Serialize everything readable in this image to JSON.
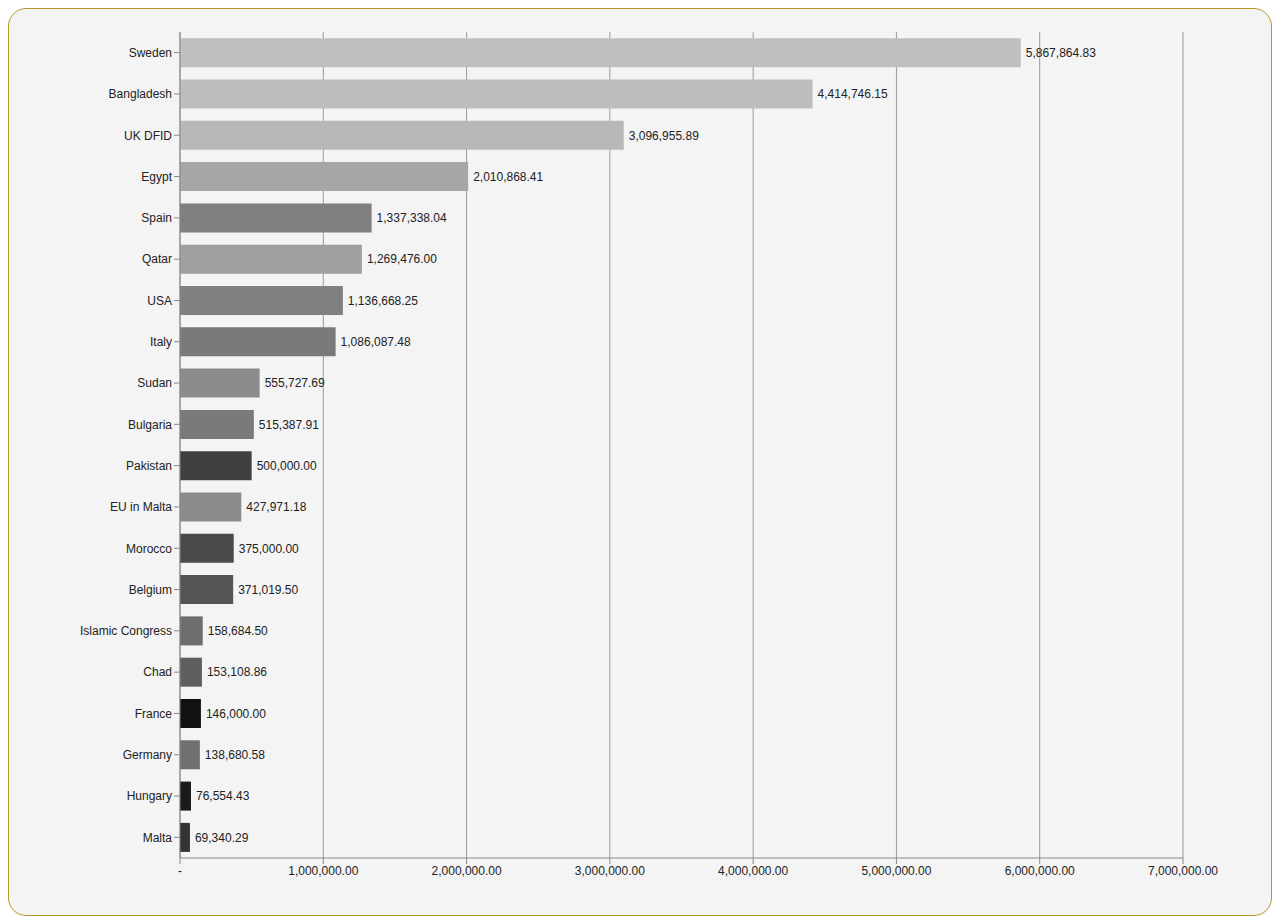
{
  "chart_data": {
    "type": "bar",
    "orientation": "horizontal",
    "grid": true,
    "data_labels": true,
    "categories": [
      "Sweden",
      "Bangladesh",
      "UK DFID",
      "Egypt",
      "Spain",
      "Qatar",
      "USA",
      "Italy",
      "Sudan",
      "Bulgaria",
      "Pakistan",
      "EU in Malta",
      "Morocco",
      "Belgium",
      "Islamic Congress",
      "Chad",
      "France",
      "Germany",
      "Hungary",
      "Malta"
    ],
    "values": [
      5867864.83,
      4414746.15,
      3096955.89,
      2010868.41,
      1337338.04,
      1269476.0,
      1136668.25,
      1086087.48,
      555727.69,
      515387.91,
      500000.0,
      427971.18,
      375000.0,
      371019.5,
      158684.5,
      153108.86,
      146000.0,
      138680.58,
      76554.43,
      69340.29
    ],
    "value_labels": [
      "5,867,864.83",
      "4,414,746.15",
      "3,096,955.89",
      "2,010,868.41",
      "1,337,338.04",
      "1,269,476.00",
      "1,136,668.25",
      "1,086,087.48",
      "555,727.69",
      "515,387.91",
      "500,000.00",
      "427,971.18",
      "375,000.00",
      "371,019.50",
      "158,684.50",
      "153,108.86",
      "146,000.00",
      "138,680.58",
      "76,554.43",
      "69,340.29"
    ],
    "colors": [
      "#bfbfbf",
      "#bdbdbd",
      "#b8b8b8",
      "#a6a6a6",
      "#7f7f7f",
      "#a0a0a0",
      "#808080",
      "#7a7a7a",
      "#8c8c8c",
      "#7a7a7a",
      "#404040",
      "#8c8c8c",
      "#4a4a4a",
      "#555555",
      "#6e6e6e",
      "#5f5f5f",
      "#111111",
      "#707070",
      "#1a1a1a",
      "#333333"
    ],
    "xlim": [
      0,
      7000000
    ],
    "xticks": [
      {
        "value": 0,
        "label": "-"
      },
      {
        "value": 1000000,
        "label": "1,000,000.00"
      },
      {
        "value": 2000000,
        "label": "2,000,000.00"
      },
      {
        "value": 3000000,
        "label": "3,000,000.00"
      },
      {
        "value": 4000000,
        "label": "4,000,000.00"
      },
      {
        "value": 5000000,
        "label": "5,000,000.00"
      },
      {
        "value": 6000000,
        "label": "6,000,000.00"
      },
      {
        "value": 7000000,
        "label": "7,000,000.00"
      }
    ]
  }
}
